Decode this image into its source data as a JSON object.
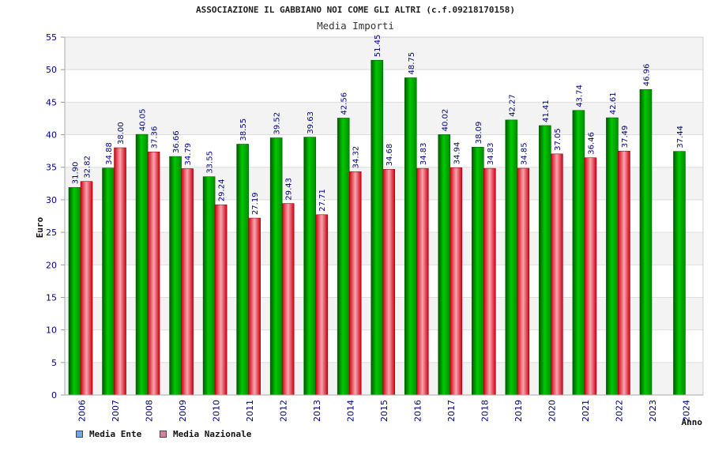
{
  "chart_data": {
    "type": "bar",
    "title": "ASSOCIAZIONE IL GABBIANO NOI COME GLI ALTRI (c.f.09218170158)",
    "subtitle": "Media Importi",
    "xlabel": "Anno",
    "ylabel": "Euro",
    "ylim": [
      0,
      55
    ],
    "yticks": [
      "0",
      "5",
      "10",
      "15",
      "20",
      "25",
      "30",
      "35",
      "40",
      "45",
      "50",
      "55"
    ],
    "grid": true,
    "categories": [
      "2006",
      "2007",
      "2008",
      "2009",
      "2010",
      "2011",
      "2012",
      "2013",
      "2014",
      "2015",
      "2016",
      "2017",
      "2018",
      "2019",
      "2020",
      "2021",
      "2022",
      "2023",
      "2024"
    ],
    "series": [
      {
        "name": "Media Ente",
        "bar_color": "#00b000",
        "legend_color": "#6aa8e8",
        "values": [
          31.9,
          34.88,
          40.05,
          36.66,
          33.55,
          38.55,
          39.52,
          39.63,
          42.56,
          51.45,
          48.75,
          40.02,
          38.09,
          42.27,
          41.41,
          43.74,
          42.61,
          46.96,
          37.44
        ],
        "labels": [
          "31.90",
          "34.88",
          "40.05",
          "36.66",
          "33.55",
          "38.55",
          "39.52",
          "39.63",
          "42.56",
          "51.45",
          "48.75",
          "40.02",
          "38.09",
          "42.27",
          "41.41",
          "43.74",
          "42.61",
          "46.96",
          "37.44"
        ]
      },
      {
        "name": "Media Nazionale",
        "bar_color": "#e01020",
        "legend_color": "#e07aa0",
        "values": [
          32.82,
          38.0,
          37.36,
          34.79,
          29.24,
          27.19,
          29.43,
          27.71,
          34.32,
          34.68,
          34.83,
          34.94,
          34.83,
          34.85,
          37.05,
          36.46,
          37.49,
          null,
          null
        ],
        "labels": [
          "32.82",
          "38.00",
          "37.36",
          "34.79",
          "29.24",
          "27.19",
          "29.43",
          "27.71",
          "34.32",
          "34.68",
          "34.83",
          "34.94",
          "34.83",
          "34.85",
          "37.05",
          "36.46",
          "37.49",
          null,
          null
        ]
      }
    ],
    "legend_position": "bottom-left"
  }
}
